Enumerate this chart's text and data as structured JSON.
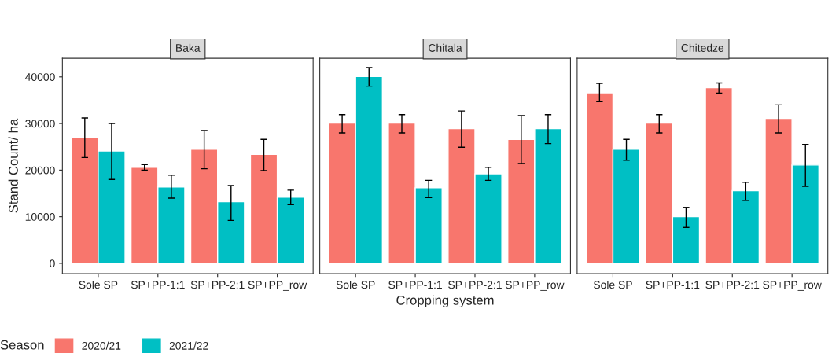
{
  "chart_data": [
    {
      "type": "bar",
      "title": "Baka",
      "ylabel": "Stand Count/ ha",
      "categories": [
        "Sole SP",
        "SP+PP-1:1",
        "SP+PP-2:1",
        "SP+PP_row"
      ],
      "ylim": [
        -2200,
        44000
      ],
      "yticks": [
        0,
        10000,
        20000,
        30000,
        40000
      ],
      "grid": false,
      "legend": false,
      "series": [
        {
          "color": "#f8766d",
          "values": [
            27100,
            20600,
            24500,
            23400
          ],
          "errors": [
            [
              22700,
              31200
            ],
            [
              20000,
              21200
            ],
            [
              20300,
              28500
            ],
            [
              19900,
              26600
            ]
          ]
        },
        {
          "color": "#00bfc4",
          "values": [
            24100,
            16400,
            13200,
            14200
          ],
          "errors": [
            [
              18000,
              30000
            ],
            [
              14000,
              18900
            ],
            [
              9200,
              16700
            ],
            [
              12600,
              15700
            ]
          ]
        }
      ]
    },
    {
      "type": "bar",
      "title": "Chitala",
      "xlabel": "Cropping system",
      "legend_title": "Season",
      "legend": "bottom",
      "tick_labels": "x",
      "categories": [
        "Sole SP",
        "SP+PP-1:1",
        "SP+PP-2:1",
        "SP+PP_row"
      ],
      "ylim": [
        -2200,
        44000
      ],
      "grid": false,
      "series": [
        {
          "name": "2020/21",
          "color": "#f8766d",
          "values": [
            30100,
            30100,
            28900,
            26600
          ],
          "errors": [
            [
              28000,
              31900
            ],
            [
              28000,
              31900
            ],
            [
              24900,
              32700
            ],
            [
              21400,
              31700
            ]
          ]
        },
        {
          "name": "2021/22",
          "color": "#00bfc4",
          "values": [
            40100,
            16200,
            19200,
            28900
          ],
          "errors": [
            [
              38000,
              42000
            ],
            [
              14100,
              17800
            ],
            [
              17800,
              20600
            ],
            [
              25700,
              31900
            ]
          ]
        }
      ]
    },
    {
      "type": "bar",
      "title": "Chitedze",
      "tick_labels": "x",
      "categories": [
        "Sole SP",
        "SP+PP-1:1",
        "SP+PP-2:1",
        "SP+PP_row"
      ],
      "ylim": [
        -2200,
        44000
      ],
      "grid": false,
      "legend": false,
      "series": [
        {
          "color": "#f8766d",
          "values": [
            36600,
            30100,
            37700,
            31100
          ],
          "errors": [
            [
              34700,
              38600
            ],
            [
              28000,
              31900
            ],
            [
              36500,
              38700
            ],
            [
              28000,
              34000
            ]
          ]
        },
        {
          "color": "#00bfc4",
          "values": [
            24500,
            10000,
            15600,
            21100
          ],
          "errors": [
            [
              22100,
              26600
            ],
            [
              7700,
              12000
            ],
            [
              13500,
              17400
            ],
            [
              16500,
              25500
            ]
          ]
        }
      ]
    }
  ]
}
